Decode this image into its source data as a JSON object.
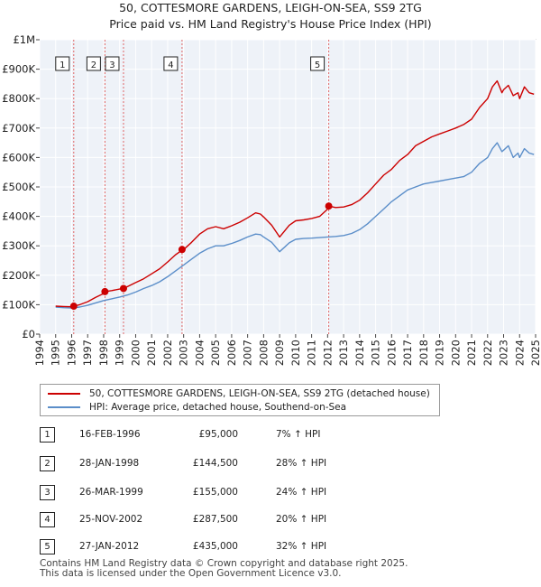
{
  "chart_data": {
    "type": "line",
    "title": "50, COTTESMORE GARDENS, LEIGH-ON-SEA, SS9 2TG",
    "subtitle": "Price paid vs. HM Land Registry's House Price Index (HPI)",
    "xlim": [
      1994,
      2025
    ],
    "ylim": [
      0,
      1000000
    ],
    "x_ticks": [
      "1994",
      "1995",
      "1996",
      "1997",
      "1998",
      "1999",
      "2000",
      "2001",
      "2002",
      "2003",
      "2004",
      "2005",
      "2006",
      "2007",
      "2008",
      "2009",
      "2010",
      "2011",
      "2012",
      "2013",
      "2014",
      "2015",
      "2016",
      "2017",
      "2018",
      "2019",
      "2020",
      "2021",
      "2022",
      "2023",
      "2024",
      "2025"
    ],
    "y_ticks": [
      {
        "value": 0,
        "label": "£0"
      },
      {
        "value": 100000,
        "label": "£100K"
      },
      {
        "value": 200000,
        "label": "£200K"
      },
      {
        "value": 300000,
        "label": "£300K"
      },
      {
        "value": 400000,
        "label": "£400K"
      },
      {
        "value": 500000,
        "label": "£500K"
      },
      {
        "value": 600000,
        "label": "£600K"
      },
      {
        "value": 700000,
        "label": "£700K"
      },
      {
        "value": 800000,
        "label": "£800K"
      },
      {
        "value": 900000,
        "label": "£900K"
      },
      {
        "value": 1000000,
        "label": "£1M"
      }
    ],
    "grid": true,
    "legend_position": "below",
    "series": [
      {
        "name": "50, COTTESMORE GARDENS, LEIGH-ON-SEA, SS9 2TG (detached house)",
        "color": "#cc0000",
        "x": [
          1995.0,
          1995.5,
          1996.0,
          1996.13,
          1996.5,
          1997.0,
          1997.5,
          1998.0,
          1998.08,
          1998.5,
          1999.0,
          1999.24,
          1999.5,
          2000.0,
          2000.5,
          2001.0,
          2001.5,
          2002.0,
          2002.5,
          2002.9,
          2003.0,
          2003.5,
          2004.0,
          2004.5,
          2005.0,
          2005.5,
          2006.0,
          2006.5,
          2007.0,
          2007.5,
          2007.8,
          2008.0,
          2008.5,
          2009.0,
          2009.3,
          2009.6,
          2010.0,
          2010.5,
          2011.0,
          2011.5,
          2012.0,
          2012.07,
          2012.5,
          2013.0,
          2013.5,
          2014.0,
          2014.5,
          2015.0,
          2015.5,
          2016.0,
          2016.5,
          2017.0,
          2017.5,
          2018.0,
          2018.5,
          2019.0,
          2019.5,
          2020.0,
          2020.5,
          2021.0,
          2021.5,
          2022.0,
          2022.3,
          2022.6,
          2022.9,
          2023.0,
          2023.3,
          2023.6,
          2023.9,
          2024.0,
          2024.3,
          2024.6,
          2024.9
        ],
        "values": [
          95000,
          94000,
          93000,
          95000,
          100000,
          110000,
          125000,
          138000,
          144500,
          148000,
          153000,
          155000,
          162000,
          175000,
          188000,
          205000,
          222000,
          245000,
          270000,
          285000,
          287500,
          312000,
          340000,
          358000,
          365000,
          358000,
          368000,
          380000,
          395000,
          412000,
          408000,
          398000,
          370000,
          330000,
          350000,
          370000,
          385000,
          388000,
          393000,
          400000,
          425000,
          435000,
          430000,
          432000,
          440000,
          455000,
          480000,
          510000,
          540000,
          560000,
          590000,
          610000,
          640000,
          655000,
          670000,
          680000,
          690000,
          700000,
          712000,
          730000,
          770000,
          800000,
          840000,
          860000,
          820000,
          830000,
          845000,
          810000,
          820000,
          800000,
          840000,
          820000,
          815000
        ]
      },
      {
        "name": "HPI: Average price, detached house, Southend-on-Sea",
        "color": "#5b8ec9",
        "x": [
          1995.0,
          1995.5,
          1996.0,
          1996.5,
          1997.0,
          1997.5,
          1998.0,
          1998.5,
          1999.0,
          1999.5,
          2000.0,
          2000.5,
          2001.0,
          2001.5,
          2002.0,
          2002.5,
          2003.0,
          2003.5,
          2004.0,
          2004.5,
          2005.0,
          2005.5,
          2006.0,
          2006.5,
          2007.0,
          2007.5,
          2007.8,
          2008.0,
          2008.5,
          2009.0,
          2009.3,
          2009.6,
          2010.0,
          2010.5,
          2011.0,
          2011.5,
          2012.0,
          2012.5,
          2013.0,
          2013.5,
          2014.0,
          2014.5,
          2015.0,
          2015.5,
          2016.0,
          2016.5,
          2017.0,
          2017.5,
          2018.0,
          2018.5,
          2019.0,
          2019.5,
          2020.0,
          2020.5,
          2021.0,
          2021.5,
          2022.0,
          2022.3,
          2022.6,
          2022.9,
          2023.0,
          2023.3,
          2023.6,
          2023.9,
          2024.0,
          2024.3,
          2024.6,
          2024.9
        ],
        "values": [
          92000,
          90000,
          89000,
          92000,
          98000,
          106000,
          114000,
          120000,
          126000,
          133000,
          143000,
          155000,
          165000,
          178000,
          195000,
          215000,
          235000,
          255000,
          275000,
          290000,
          300000,
          300000,
          308000,
          318000,
          330000,
          340000,
          338000,
          330000,
          312000,
          280000,
          295000,
          310000,
          322000,
          325000,
          326000,
          328000,
          330000,
          332000,
          335000,
          342000,
          355000,
          375000,
          400000,
          425000,
          450000,
          470000,
          490000,
          500000,
          510000,
          515000,
          520000,
          525000,
          530000,
          535000,
          550000,
          580000,
          600000,
          630000,
          650000,
          620000,
          625000,
          640000,
          600000,
          615000,
          600000,
          630000,
          615000,
          610000
        ]
      }
    ],
    "transactions": [
      {
        "id": "1",
        "x": 1996.13,
        "value": 95000
      },
      {
        "id": "2",
        "x": 1998.08,
        "value": 144500
      },
      {
        "id": "3",
        "x": 1999.24,
        "value": 155000
      },
      {
        "id": "4",
        "x": 2002.9,
        "value": 287500
      },
      {
        "id": "5",
        "x": 2012.07,
        "value": 435000
      }
    ]
  },
  "legend": {
    "property_label": "50, COTTESMORE GARDENS, LEIGH-ON-SEA, SS9 2TG (detached house)",
    "hpi_label": "HPI: Average price, detached house, Southend-on-Sea"
  },
  "table": [
    {
      "num": "1",
      "date": "16-FEB-1996",
      "price": "£95,000",
      "hpi": "7% ↑ HPI"
    },
    {
      "num": "2",
      "date": "28-JAN-1998",
      "price": "£144,500",
      "hpi": "28% ↑ HPI"
    },
    {
      "num": "3",
      "date": "26-MAR-1999",
      "price": "£155,000",
      "hpi": "24% ↑ HPI"
    },
    {
      "num": "4",
      "date": "25-NOV-2002",
      "price": "£287,500",
      "hpi": "20% ↑ HPI"
    },
    {
      "num": "5",
      "date": "27-JAN-2012",
      "price": "£435,000",
      "hpi": "32% ↑ HPI"
    }
  ],
  "footer": {
    "line1": "Contains HM Land Registry data © Crown copyright and database right 2025.",
    "line2": "This data is licensed under the Open Government Licence v3.0."
  }
}
